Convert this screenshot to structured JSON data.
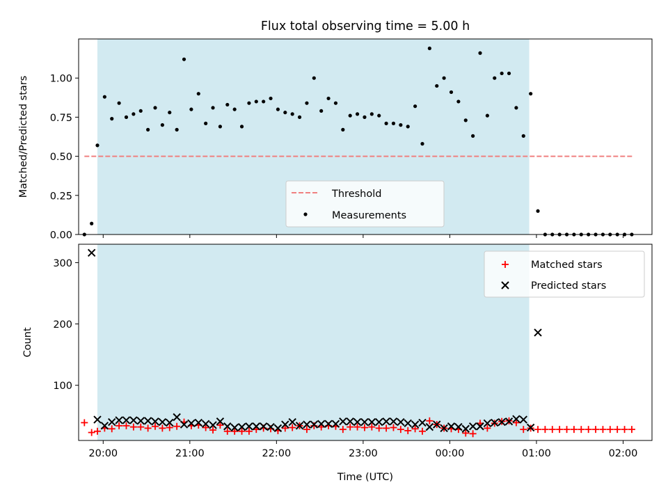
{
  "chart_data": [
    {
      "type": "scatter",
      "title": "Flux total observing time = 5.00 h",
      "ylabel": "Matched/Predicted stars",
      "xlabel": "",
      "x_unit": "time (UTC)",
      "xlim": [
        "19:43",
        "02:20"
      ],
      "ylim": [
        0,
        1.25
      ],
      "xticks": [
        "20:00",
        "21:00",
        "22:00",
        "23:00",
        "00:00",
        "01:00",
        "02:00"
      ],
      "yticks": [
        "0.00",
        "0.25",
        "0.50",
        "0.75",
        "1.00"
      ],
      "shaded_interval": [
        "19:56",
        "00:55"
      ],
      "shade_color": "#add8e6",
      "legend_position": "lower-center",
      "threshold": {
        "name": "Threshold",
        "value": 0.5,
        "x_range": [
          "19:47",
          "02:07"
        ],
        "color": "#f08080",
        "style": "dashed"
      },
      "series": [
        {
          "name": "Measurements",
          "marker": "dot",
          "color": "#000000",
          "points": [
            [
              "19:47",
              0.0
            ],
            [
              "19:52",
              0.07
            ],
            [
              "19:56",
              0.57
            ],
            [
              "20:01",
              0.88
            ],
            [
              "20:06",
              0.74
            ],
            [
              "20:11",
              0.84
            ],
            [
              "20:16",
              0.75
            ],
            [
              "20:21",
              0.77
            ],
            [
              "20:26",
              0.79
            ],
            [
              "20:31",
              0.67
            ],
            [
              "20:36",
              0.81
            ],
            [
              "20:41",
              0.7
            ],
            [
              "20:46",
              0.78
            ],
            [
              "20:51",
              0.67
            ],
            [
              "20:56",
              1.12
            ],
            [
              "21:01",
              0.8
            ],
            [
              "21:06",
              0.9
            ],
            [
              "21:11",
              0.71
            ],
            [
              "21:16",
              0.81
            ],
            [
              "21:21",
              0.69
            ],
            [
              "21:26",
              0.83
            ],
            [
              "21:31",
              0.8
            ],
            [
              "21:36",
              0.69
            ],
            [
              "21:41",
              0.84
            ],
            [
              "21:46",
              0.85
            ],
            [
              "21:51",
              0.85
            ],
            [
              "21:56",
              0.87
            ],
            [
              "22:01",
              0.8
            ],
            [
              "22:06",
              0.78
            ],
            [
              "22:11",
              0.77
            ],
            [
              "22:16",
              0.75
            ],
            [
              "22:21",
              0.84
            ],
            [
              "22:26",
              1.0
            ],
            [
              "22:31",
              0.79
            ],
            [
              "22:36",
              0.87
            ],
            [
              "22:41",
              0.84
            ],
            [
              "22:46",
              0.67
            ],
            [
              "22:51",
              0.76
            ],
            [
              "22:56",
              0.77
            ],
            [
              "23:01",
              0.75
            ],
            [
              "23:06",
              0.77
            ],
            [
              "23:11",
              0.76
            ],
            [
              "23:16",
              0.71
            ],
            [
              "23:21",
              0.71
            ],
            [
              "23:26",
              0.7
            ],
            [
              "23:31",
              0.69
            ],
            [
              "23:36",
              0.82
            ],
            [
              "23:41",
              0.58
            ],
            [
              "23:46",
              1.19
            ],
            [
              "23:51",
              0.95
            ],
            [
              "23:56",
              1.0
            ],
            [
              "00:01",
              0.91
            ],
            [
              "00:06",
              0.85
            ],
            [
              "00:11",
              0.73
            ],
            [
              "00:16",
              0.63
            ],
            [
              "00:21",
              1.16
            ],
            [
              "00:26",
              0.76
            ],
            [
              "00:31",
              1.0
            ],
            [
              "00:36",
              1.03
            ],
            [
              "00:41",
              1.03
            ],
            [
              "00:46",
              0.81
            ],
            [
              "00:51",
              0.63
            ],
            [
              "00:56",
              0.9
            ],
            [
              "01:01",
              0.15
            ],
            [
              "01:06",
              0.0
            ],
            [
              "01:11",
              0.0
            ],
            [
              "01:16",
              0.0
            ],
            [
              "01:21",
              0.0
            ],
            [
              "01:26",
              0.0
            ],
            [
              "01:31",
              0.0
            ],
            [
              "01:36",
              0.0
            ],
            [
              "01:41",
              0.0
            ],
            [
              "01:46",
              0.0
            ],
            [
              "01:51",
              0.0
            ],
            [
              "01:56",
              0.0
            ],
            [
              "02:01",
              0.0
            ],
            [
              "02:06",
              0.0
            ]
          ]
        }
      ]
    },
    {
      "type": "scatter",
      "title": "",
      "ylabel": "Count",
      "xlabel": "Time (UTC)",
      "x_unit": "time (UTC)",
      "xlim": [
        "19:43",
        "02:20"
      ],
      "ylim": [
        10,
        330
      ],
      "xticks": [
        "20:00",
        "21:00",
        "22:00",
        "23:00",
        "00:00",
        "01:00",
        "02:00"
      ],
      "yticks": [
        "100",
        "200",
        "300"
      ],
      "shaded_interval": [
        "19:56",
        "00:55"
      ],
      "shade_color": "#add8e6",
      "legend_position": "top-right",
      "series": [
        {
          "name": "Matched stars",
          "marker": "plus",
          "color": "#ff0000",
          "points": [
            [
              "19:47",
              39
            ],
            [
              "19:52",
              23
            ],
            [
              "19:56",
              25
            ],
            [
              "20:01",
              30
            ],
            [
              "20:06",
              29
            ],
            [
              "20:11",
              34
            ],
            [
              "20:16",
              34
            ],
            [
              "20:21",
              32
            ],
            [
              "20:26",
              32
            ],
            [
              "20:31",
              30
            ],
            [
              "20:36",
              33
            ],
            [
              "20:41",
              30
            ],
            [
              "20:46",
              31
            ],
            [
              "20:51",
              33
            ],
            [
              "20:56",
              40
            ],
            [
              "21:01",
              34
            ],
            [
              "21:06",
              35
            ],
            [
              "21:11",
              31
            ],
            [
              "21:16",
              27
            ],
            [
              "21:21",
              35
            ],
            [
              "21:26",
              25
            ],
            [
              "21:31",
              25
            ],
            [
              "21:36",
              25
            ],
            [
              "21:41",
              25
            ],
            [
              "21:46",
              28
            ],
            [
              "21:51",
              30
            ],
            [
              "21:56",
              29
            ],
            [
              "22:01",
              26
            ],
            [
              "22:06",
              30
            ],
            [
              "22:11",
              31
            ],
            [
              "22:16",
              34
            ],
            [
              "22:21",
              28
            ],
            [
              "22:26",
              34
            ],
            [
              "22:31",
              32
            ],
            [
              "22:36",
              34
            ],
            [
              "22:41",
              33
            ],
            [
              "22:46",
              28
            ],
            [
              "22:51",
              32
            ],
            [
              "22:56",
              32
            ],
            [
              "23:01",
              31
            ],
            [
              "23:06",
              32
            ],
            [
              "23:11",
              30
            ],
            [
              "23:16",
              30
            ],
            [
              "23:21",
              31
            ],
            [
              "23:26",
              28
            ],
            [
              "23:31",
              26
            ],
            [
              "23:36",
              29
            ],
            [
              "23:41",
              25
            ],
            [
              "23:46",
              42
            ],
            [
              "23:51",
              36
            ],
            [
              "23:56",
              30
            ],
            [
              "00:01",
              29
            ],
            [
              "00:06",
              28
            ],
            [
              "00:11",
              22
            ],
            [
              "00:16",
              21
            ],
            [
              "00:21",
              38
            ],
            [
              "00:26",
              30
            ],
            [
              "00:31",
              38
            ],
            [
              "00:36",
              41
            ],
            [
              "00:41",
              42
            ],
            [
              "00:46",
              39
            ],
            [
              "00:51",
              28
            ],
            [
              "00:56",
              30
            ],
            [
              "01:01",
              28
            ],
            [
              "01:06",
              28
            ],
            [
              "01:11",
              28
            ],
            [
              "01:16",
              28
            ],
            [
              "01:21",
              28
            ],
            [
              "01:26",
              28
            ],
            [
              "01:31",
              28
            ],
            [
              "01:36",
              28
            ],
            [
              "01:41",
              28
            ],
            [
              "01:46",
              28
            ],
            [
              "01:51",
              28
            ],
            [
              "01:56",
              28
            ],
            [
              "02:01",
              28
            ],
            [
              "02:06",
              28
            ]
          ]
        },
        {
          "name": "Predicted stars",
          "marker": "x",
          "color": "#000000",
          "points": [
            [
              "19:52",
              316
            ],
            [
              "19:56",
              44
            ],
            [
              "20:01",
              34
            ],
            [
              "20:06",
              40
            ],
            [
              "20:11",
              43
            ],
            [
              "20:16",
              43
            ],
            [
              "20:21",
              43
            ],
            [
              "20:26",
              42
            ],
            [
              "20:31",
              42
            ],
            [
              "20:36",
              41
            ],
            [
              "20:41",
              40
            ],
            [
              "20:46",
              39
            ],
            [
              "20:51",
              48
            ],
            [
              "20:56",
              36
            ],
            [
              "21:01",
              38
            ],
            [
              "21:06",
              39
            ],
            [
              "21:11",
              37
            ],
            [
              "21:16",
              35
            ],
            [
              "21:21",
              41
            ],
            [
              "21:26",
              33
            ],
            [
              "21:31",
              31
            ],
            [
              "21:36",
              32
            ],
            [
              "21:41",
              33
            ],
            [
              "21:46",
              33
            ],
            [
              "21:51",
              33
            ],
            [
              "21:56",
              32
            ],
            [
              "22:01",
              30
            ],
            [
              "22:06",
              36
            ],
            [
              "22:11",
              40
            ],
            [
              "22:16",
              34
            ],
            [
              "22:21",
              36
            ],
            [
              "22:26",
              36
            ],
            [
              "22:31",
              37
            ],
            [
              "22:36",
              37
            ],
            [
              "22:41",
              37
            ],
            [
              "22:46",
              41
            ],
            [
              "22:51",
              41
            ],
            [
              "22:56",
              40
            ],
            [
              "23:01",
              40
            ],
            [
              "23:06",
              40
            ],
            [
              "23:11",
              40
            ],
            [
              "23:16",
              41
            ],
            [
              "23:21",
              41
            ],
            [
              "23:26",
              40
            ],
            [
              "23:31",
              38
            ],
            [
              "23:36",
              36
            ],
            [
              "23:41",
              39
            ],
            [
              "23:46",
              32
            ],
            [
              "23:51",
              36
            ],
            [
              "23:56",
              30
            ],
            [
              "00:01",
              33
            ],
            [
              "00:06",
              32
            ],
            [
              "00:11",
              29
            ],
            [
              "00:16",
              33
            ],
            [
              "00:21",
              33
            ],
            [
              "00:26",
              38
            ],
            [
              "00:31",
              39
            ],
            [
              "00:36",
              40
            ],
            [
              "00:41",
              41
            ],
            [
              "00:46",
              45
            ],
            [
              "00:51",
              44
            ],
            [
              "00:56",
              31
            ],
            [
              "01:01",
              186
            ]
          ]
        }
      ]
    }
  ]
}
